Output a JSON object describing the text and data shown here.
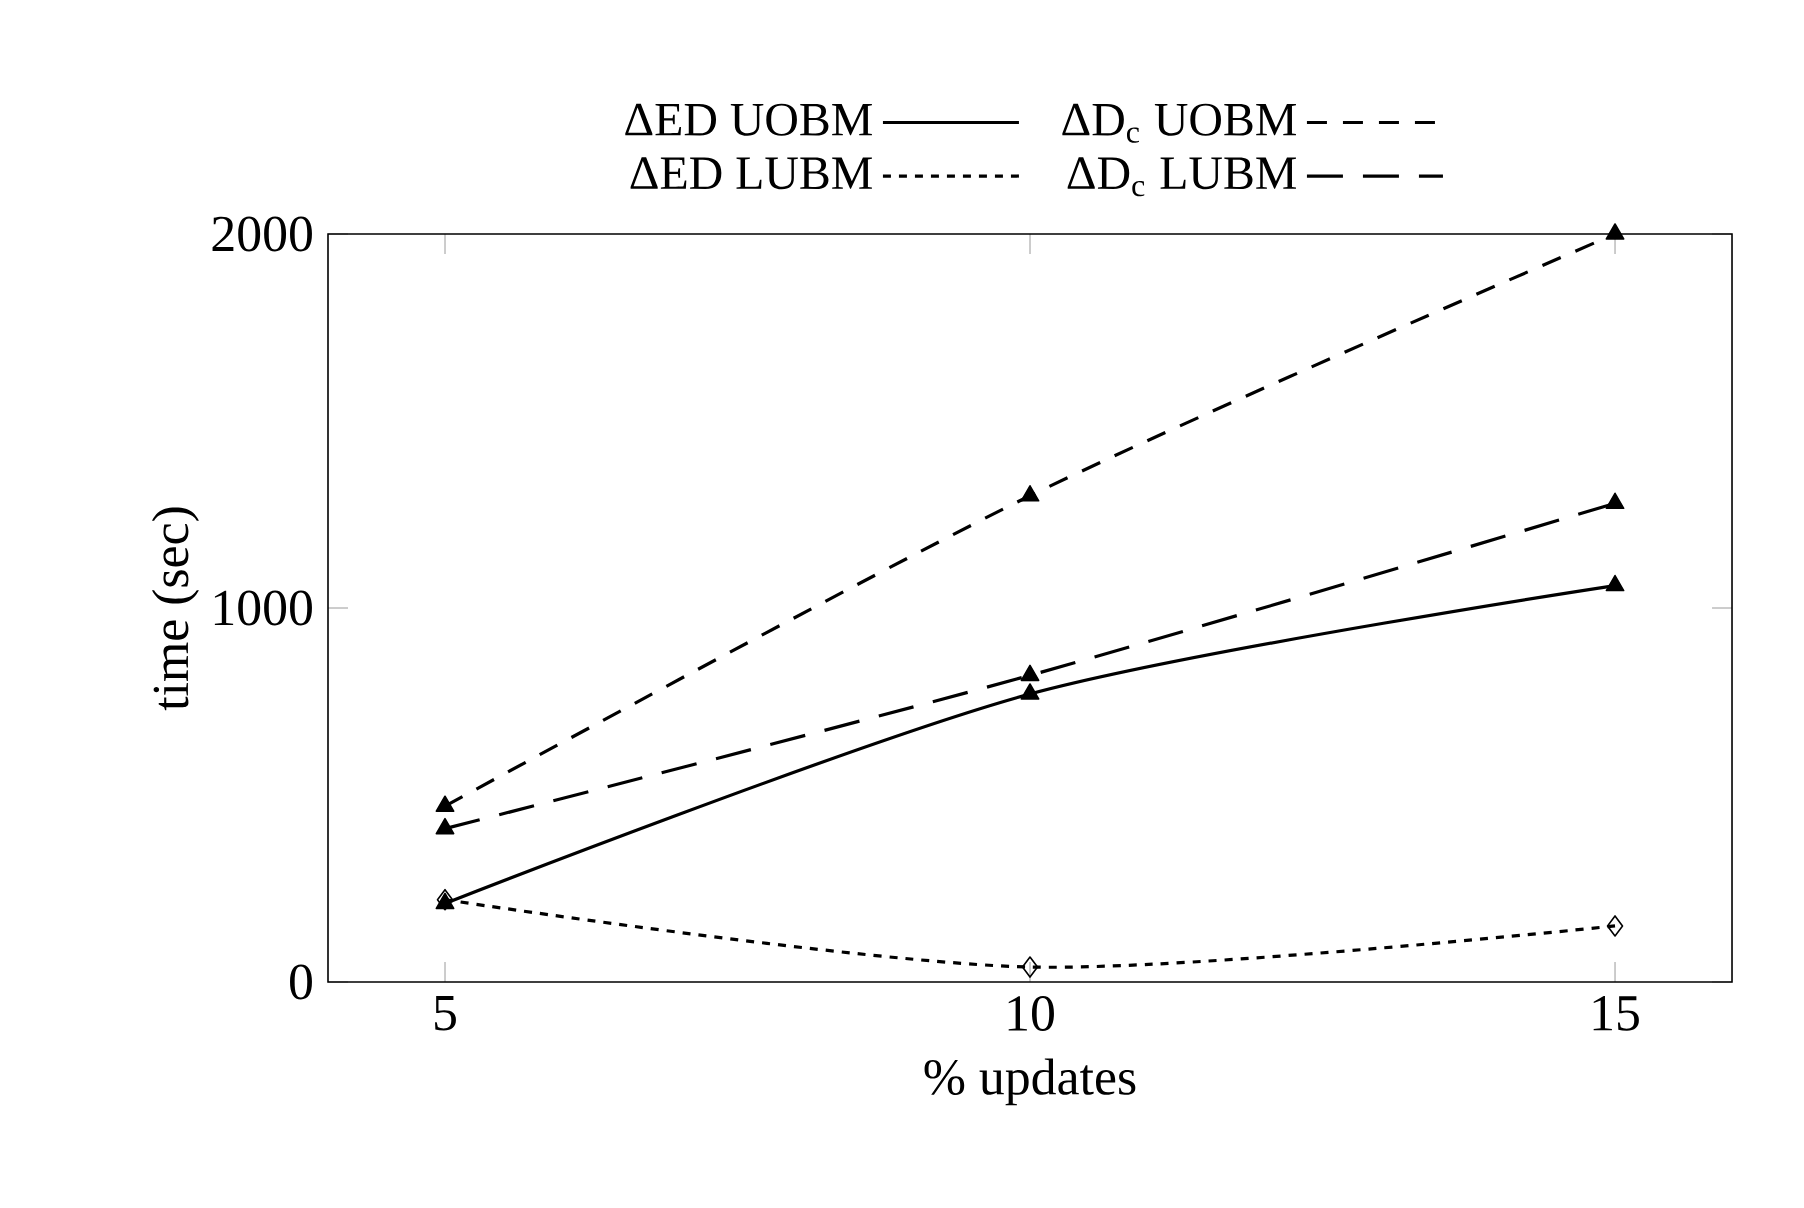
{
  "chart_data": {
    "type": "line",
    "xlabel": "% updates",
    "ylabel": "time (sec)",
    "x": [
      5,
      10,
      15
    ],
    "xlim": [
      4,
      16
    ],
    "xticks": [
      5,
      10,
      15
    ],
    "ylim": [
      0,
      2000
    ],
    "yticks": [
      0,
      1000,
      2000
    ],
    "legend": "top",
    "grid": false,
    "series": [
      {
        "name": "ΔED UOBM",
        "color": "#000000",
        "values": [
          210,
          770,
          1060
        ],
        "marker": "triangle",
        "line_style": "solid"
      },
      {
        "name": "ΔD$_{c}$ UOBM",
        "color": "#000000",
        "values": [
          470,
          1300,
          2000
        ],
        "marker": "triangle",
        "line_style": "dashed"
      },
      {
        "name": "ΔED LUBM",
        "color": "#000000",
        "values": [
          220,
          40,
          150
        ],
        "marker": "diamond",
        "line_style": "dotted"
      },
      {
        "name": "ΔD$_{c}$ LUBM",
        "color": "#000000",
        "values": [
          410,
          820,
          1280
        ],
        "marker": "triangle",
        "line_style": "dashed"
      }
    ]
  }
}
